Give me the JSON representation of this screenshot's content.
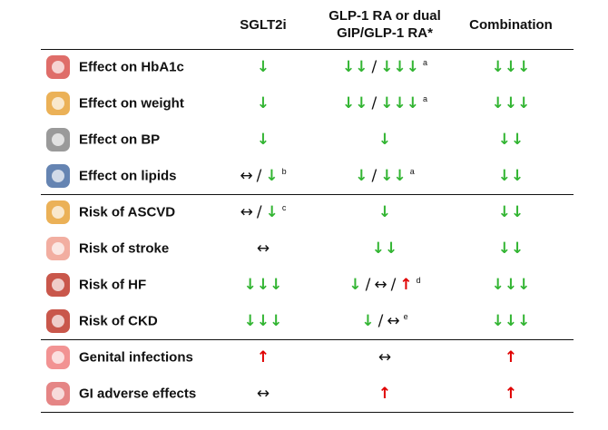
{
  "table": {
    "columns": [
      [
        "SGLT2i"
      ],
      [
        "GLP-1 RA or dual",
        "GIP/GLP-1 RA*"
      ],
      [
        "Combination"
      ]
    ],
    "sections": [
      {
        "rows": [
          {
            "label": "Effect on HbA1c",
            "cells": [
              {
                "parts": [
                  "↓"
                ]
              },
              {
                "parts": [
                  "↓↓",
                  "/",
                  "↓↓↓"
                ],
                "note": "a"
              },
              {
                "parts": [
                  "↓↓↓"
                ]
              }
            ]
          },
          {
            "label": "Effect on weight",
            "cells": [
              {
                "parts": [
                  "↓"
                ]
              },
              {
                "parts": [
                  "↓↓",
                  "/",
                  "↓↓↓"
                ],
                "note": "a"
              },
              {
                "parts": [
                  "↓↓↓"
                ]
              }
            ]
          },
          {
            "label": "Effect on BP",
            "cells": [
              {
                "parts": [
                  "↓"
                ]
              },
              {
                "parts": [
                  "↓"
                ]
              },
              {
                "parts": [
                  "↓↓"
                ]
              }
            ]
          },
          {
            "label": "Effect on lipids",
            "cells": [
              {
                "parts": [
                  "↔",
                  "/",
                  "↓"
                ],
                "note": "b"
              },
              {
                "parts": [
                  "↓",
                  "/",
                  "↓↓"
                ],
                "note": "a"
              },
              {
                "parts": [
                  "↓↓"
                ]
              }
            ]
          }
        ]
      },
      {
        "rows": [
          {
            "label": "Risk of ASCVD",
            "cells": [
              {
                "parts": [
                  "↔",
                  "/",
                  "↓"
                ],
                "note": "c"
              },
              {
                "parts": [
                  "↓"
                ]
              },
              {
                "parts": [
                  "↓↓"
                ]
              }
            ]
          },
          {
            "label": "Risk of stroke",
            "cells": [
              {
                "parts": [
                  "↔"
                ]
              },
              {
                "parts": [
                  "↓↓"
                ]
              },
              {
                "parts": [
                  "↓↓"
                ]
              }
            ]
          },
          {
            "label": "Risk of HF",
            "cells": [
              {
                "parts": [
                  "↓↓↓"
                ]
              },
              {
                "parts": [
                  "↓",
                  "/",
                  "↔",
                  "/",
                  "↑"
                ],
                "note": "d"
              },
              {
                "parts": [
                  "↓↓↓"
                ]
              }
            ]
          },
          {
            "label": "Risk of CKD",
            "cells": [
              {
                "parts": [
                  "↓↓↓"
                ]
              },
              {
                "parts": [
                  "↓",
                  "/",
                  "↔"
                ],
                "note": "e"
              },
              {
                "parts": [
                  "↓↓↓"
                ]
              }
            ]
          }
        ]
      },
      {
        "rows": [
          {
            "label": "Genital infections",
            "cells": [
              {
                "parts": [
                  "↑"
                ]
              },
              {
                "parts": [
                  "↔"
                ]
              },
              {
                "parts": [
                  "↑"
                ]
              }
            ]
          },
          {
            "label": "GI adverse effects",
            "cells": [
              {
                "parts": [
                  "↔"
                ]
              },
              {
                "parts": [
                  "↑"
                ]
              },
              {
                "parts": [
                  "↑"
                ]
              }
            ]
          }
        ]
      }
    ]
  }
}
